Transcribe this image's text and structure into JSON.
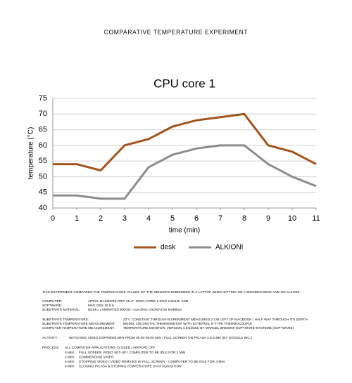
{
  "header": {
    "title": "COMPARATIVE TEMPERATURE EXPERIMENT"
  },
  "chart_data": {
    "type": "line",
    "title": "CPU core 1",
    "x_label": "time (min)",
    "y_label": "temperature (°C)",
    "x": [
      0,
      1,
      2,
      3,
      4,
      5,
      6,
      7,
      8,
      9,
      10,
      11
    ],
    "series": [
      {
        "name": "desk",
        "color": "#a5521b",
        "values": [
          54,
          54,
          52,
          60,
          62,
          66,
          68,
          69,
          70,
          60,
          58,
          54
        ]
      },
      {
        "name": "ALKIONI",
        "color": "#8c8c8c",
        "values": [
          44,
          44,
          43,
          43,
          53,
          57,
          59,
          60,
          60,
          54,
          50,
          47
        ]
      }
    ],
    "xlim": [
      0,
      11
    ],
    "xticks": [
      0,
      1,
      2,
      3,
      4,
      5,
      6,
      7,
      8,
      9,
      10,
      11
    ],
    "ylim": [
      40,
      75
    ],
    "yticks": [
      40,
      45,
      50,
      55,
      60,
      65,
      70,
      75
    ],
    "grid": true,
    "legend": "bottom"
  },
  "document": {
    "intro": "THIS EXPERIMENT COMPARES THE TEMPERATURE VALUES OF THE SENSORS EMBEDDED IN A LAPTOP WHEN SITTING ON A WOODEN DESK AND ON ALKIONI.",
    "specs": [
      {
        "label": "COMPUTER:",
        "value": "APPLE MACBOOK PRO 15.4\", INTEL CORE 2 DUO 2.5GHZ, 2GB"
      },
      {
        "label": "SOFTWARE:",
        "value": "MAC OSX 10.5.8"
      },
      {
        "label": "SUBSTRATE MATERIAL:",
        "value": "DESK= LAMINATED WOOD / ALKIONI= DIONYSOS MARBLE"
      },
      {
        "label": "SUBSTRATE TEMPERATURE:",
        "value": "23°C  CONSTANT THROUGH EXPERIMENT MEASURED 2 CM LEFT OF MACBOOK / HALF WAY THROUGH ITS DEPTH"
      },
      {
        "label": "SUBSTRATE TEMPERATURE MEASUREMENT:",
        "value": "MODEL 305 DIGITAL THERMOMETER WITH EXTERNAL K-TYPE THERMOCOUPLE"
      },
      {
        "label": "COMPUTER TEMPERATURE MEASUREMENT:",
        "value": "TEMPERATURE MONITOR, VERSION 4.94(4034) BY MARCEL BRESINK SOFTWARE-SYSTEME (SOFTWARE)"
      }
    ],
    "activity": {
      "label": "ACTIVITY:",
      "value": "WATCHING VIDEO GOPR0082.MP4 FROM 00.00-06.00 MIN / FULL SCREEN ON PICASA 3.8.9.390 (BY GOOGLE INC.)"
    },
    "process": {
      "label": "PROCESS:",
      "value": "ALL COMPUTER APPLICATIONS CLOSED / AIRPORT OFF",
      "steps": [
        {
          "time": "0 MIN:",
          "text": "FULL SCREEN VIDEO SET-UP / COMPUTER TO BE IDLE FOR 2 MIN"
        },
        {
          "time": "2 MIN:",
          "text": "COMMENCING VIDEO"
        },
        {
          "time": "6 MIN:",
          "text": "STOPPING VIDEO / VIDEO REMAINS IN FULL SCREEN - COMPUTER TO BE IDLE FOR 3 MIN"
        },
        {
          "time": "9 MIN:",
          "text": "CLOSING PICASA & STOPING TEMPERATURE DATA AQUISITION"
        }
      ]
    }
  }
}
